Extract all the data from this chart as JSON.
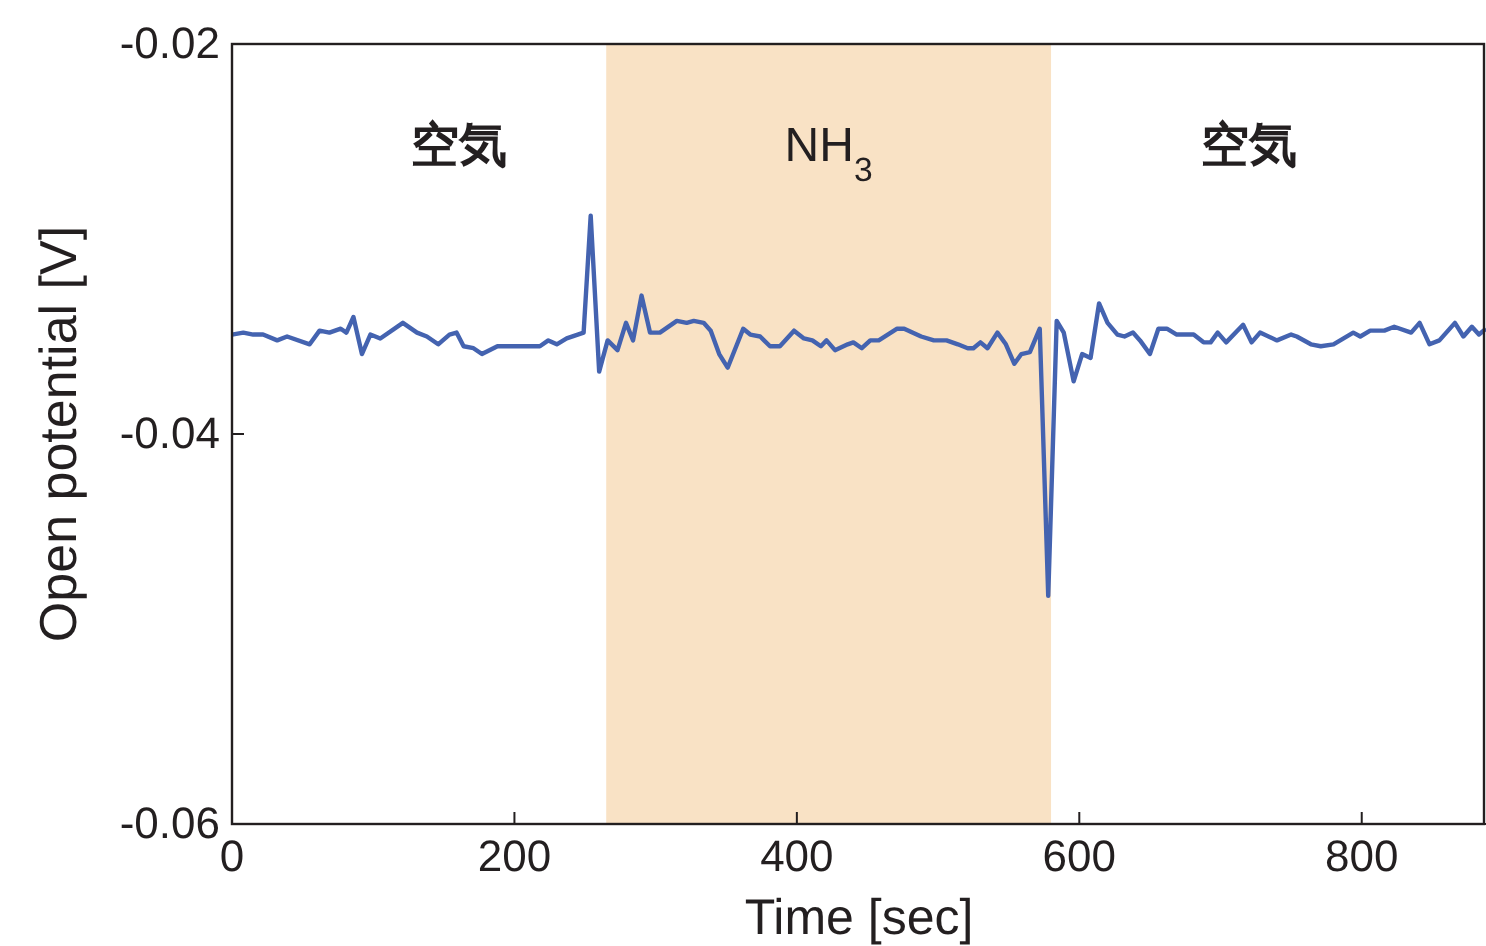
{
  "chart_data": {
    "type": "line",
    "xlabel": "Time [sec]",
    "ylabel": "Open potential [V]",
    "xlim": [
      0,
      888
    ],
    "xticks": [
      0,
      200,
      400,
      600,
      800
    ],
    "ylim": [
      -0.06,
      -0.02
    ],
    "yticks": [
      -0.06,
      -0.04,
      -0.02
    ],
    "grid": false,
    "marker": "none",
    "line_style": "solid",
    "bands": [
      {
        "axis": "x",
        "from": 265,
        "to": 580,
        "label": "NH$_{3}$",
        "color": "#f9e2c5"
      }
    ],
    "annotations": [
      "空気",
      "空気"
    ],
    "series": [
      {
        "color": "#4463b0",
        "x": [
          0,
          8,
          15,
          22,
          32,
          39,
          55,
          62,
          69,
          77,
          81,
          86,
          92,
          98,
          105,
          121,
          131,
          138,
          146,
          154,
          159,
          164,
          171,
          177,
          188,
          195,
          218,
          224,
          230,
          237,
          249,
          254,
          260,
          266,
          273,
          279,
          284,
          290,
          296,
          303,
          315,
          322,
          327,
          334,
          339,
          345,
          351,
          362,
          367,
          374,
          381,
          388,
          398,
          405,
          411,
          417,
          421,
          427,
          436,
          440,
          446,
          452,
          458,
          471,
          476,
          488,
          497,
          506,
          514,
          521,
          525,
          530,
          535,
          542,
          548,
          554,
          559,
          565,
          572,
          578,
          584,
          589,
          596,
          602,
          608,
          614,
          620,
          627,
          632,
          638,
          643,
          650,
          656,
          662,
          669,
          681,
          688,
          693,
          698,
          704,
          716,
          722,
          728,
          740,
          750,
          754,
          764,
          771,
          780,
          794,
          799,
          806,
          816,
          823,
          835,
          841,
          848,
          855,
          866,
          872,
          878,
          883,
          888
        ],
        "values": [
          -0.0349,
          -0.0348,
          -0.0349,
          -0.0349,
          -0.0352,
          -0.035,
          -0.0354,
          -0.0347,
          -0.0348,
          -0.0346,
          -0.0348,
          -0.034,
          -0.0359,
          -0.0349,
          -0.0351,
          -0.0343,
          -0.0348,
          -0.035,
          -0.0354,
          -0.0349,
          -0.0348,
          -0.0355,
          -0.0356,
          -0.0359,
          -0.0355,
          -0.0355,
          -0.0355,
          -0.0352,
          -0.0354,
          -0.0351,
          -0.0348,
          -0.0288,
          -0.0368,
          -0.0352,
          -0.0357,
          -0.0343,
          -0.0352,
          -0.0329,
          -0.0348,
          -0.0348,
          -0.0342,
          -0.0343,
          -0.0342,
          -0.0343,
          -0.0347,
          -0.0359,
          -0.0366,
          -0.0346,
          -0.0349,
          -0.035,
          -0.0355,
          -0.0355,
          -0.0347,
          -0.0351,
          -0.0352,
          -0.0355,
          -0.0352,
          -0.0357,
          -0.0354,
          -0.0353,
          -0.0356,
          -0.0352,
          -0.0352,
          -0.0346,
          -0.0346,
          -0.035,
          -0.0352,
          -0.0352,
          -0.0354,
          -0.0356,
          -0.0356,
          -0.0353,
          -0.0356,
          -0.0348,
          -0.0354,
          -0.0364,
          -0.0359,
          -0.0358,
          -0.0346,
          -0.0483,
          -0.0342,
          -0.0348,
          -0.0373,
          -0.0359,
          -0.0361,
          -0.0333,
          -0.0343,
          -0.0349,
          -0.035,
          -0.0348,
          -0.0352,
          -0.0359,
          -0.0346,
          -0.0346,
          -0.0349,
          -0.0349,
          -0.0353,
          -0.0353,
          -0.0348,
          -0.0353,
          -0.0344,
          -0.0353,
          -0.0348,
          -0.0352,
          -0.0349,
          -0.035,
          -0.0354,
          -0.0355,
          -0.0354,
          -0.0348,
          -0.035,
          -0.0347,
          -0.0347,
          -0.0345,
          -0.0348,
          -0.0343,
          -0.0354,
          -0.0352,
          -0.0343,
          -0.035,
          -0.0345,
          -0.0349,
          -0.0346
        ]
      }
    ]
  }
}
